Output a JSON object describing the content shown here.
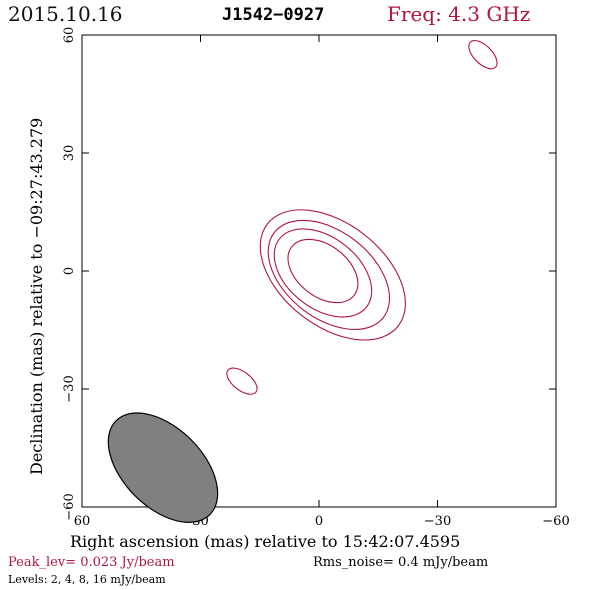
{
  "header": {
    "date": "2015.10.16",
    "source": "J1542−0927",
    "frequency": "Freq: 4.3 GHz"
  },
  "axes": {
    "xlabel": "Right ascension (mas) relative to 15:42:07.4595",
    "ylabel": "Declination (mas) relative to −09:27:43.279",
    "x_ticks": [
      "60",
      "30",
      "0",
      "−30",
      "−60"
    ],
    "y_ticks": [
      "60",
      "30",
      "0",
      "−30",
      "−60"
    ]
  },
  "footer": {
    "peak": "Peak_lev=  0.023 Jy/beam",
    "rms": "Rms_noise=  0.4 mJy/beam",
    "levels": "Levels:   2,    4,    8,   16  mJy/beam"
  },
  "colors": {
    "contour": "#b0173f",
    "beam_fill": "#808080",
    "title_accent": "#b0173f"
  },
  "plot": {
    "x_range_mas": [
      60,
      -60
    ],
    "y_range_mas": [
      -60,
      60
    ],
    "contours": [
      {
        "level": 16,
        "cx": -1,
        "cy": 0,
        "rx": 10,
        "ry": 6.5,
        "angle": 38
      },
      {
        "level": 8,
        "cx": -1,
        "cy": -0.5,
        "rx": 14,
        "ry": 9,
        "angle": 38
      },
      {
        "level": 4,
        "cx": -2.5,
        "cy": -1,
        "rx": 17.5,
        "ry": 11,
        "angle": 38
      },
      {
        "level": 2,
        "cx": -3.5,
        "cy": -1,
        "rx": 21,
        "ry": 13,
        "angle": 38
      },
      {
        "level": 2,
        "cx": 19.5,
        "cy": -28,
        "rx": 4.5,
        "ry": 2.3,
        "angle": 38
      },
      {
        "level": 2,
        "cx": -41.5,
        "cy": 55,
        "rx": 4.5,
        "ry": 2.3,
        "angle": 45
      }
    ],
    "beam": {
      "cx": 39.5,
      "cy": -50,
      "rx": 8,
      "ry": 4.8,
      "angle": 45
    }
  }
}
